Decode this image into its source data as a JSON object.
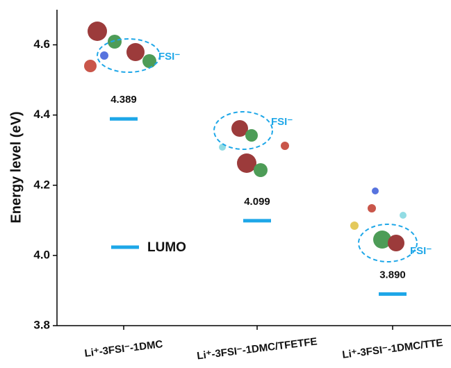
{
  "chart_data": {
    "type": "energy-level",
    "ylabel": "Energy level (eV)",
    "categories": [
      "Li⁺-3FSI⁻-1DMC",
      "Li⁺-3FSI⁻-1DMC/TFETFE",
      "Li⁺-3FSI⁻-1DMC/TTE"
    ],
    "series": [
      {
        "name": "LUMO",
        "color": "#1ea7e8",
        "values": [
          4.389,
          4.099,
          3.89
        ],
        "value_labels": [
          "4.389",
          "4.099",
          "3.890"
        ]
      }
    ],
    "annotations": [
      "FSI⁻",
      "FSI⁻",
      "FSI⁻"
    ],
    "ylim": [
      3.8,
      4.7
    ],
    "yticks": [
      3.8,
      {
        "value": 4.0,
        "label": "4.0"
      },
      4.2,
      4.4,
      4.6
    ]
  }
}
